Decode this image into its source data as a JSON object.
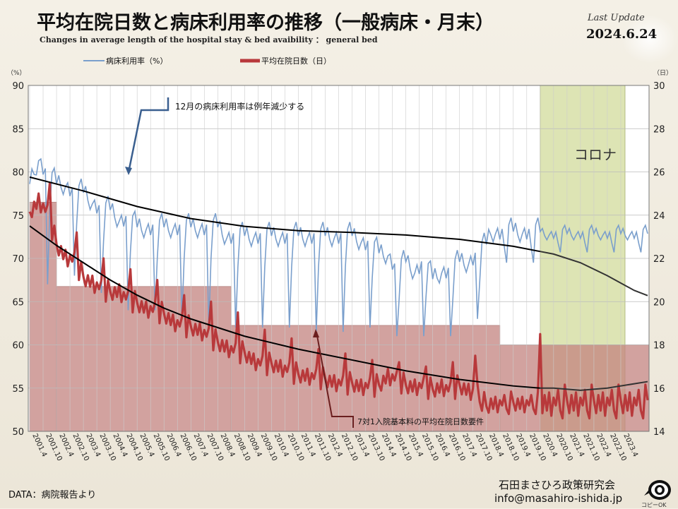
{
  "title": "平均在院日数と病床利用率の推移（一般病床・月末）",
  "subtitle": "Changes in average length of the hospital stay  & bed  avaibility  ： general bed",
  "last_update_label": "Last Update",
  "last_update_date": "2024.6.24",
  "source": "DATA：病院報告より",
  "organization": "石田まさひろ政策研究会",
  "email": "info@masahiro-ishida.jp",
  "logo_text": "コピーOK",
  "colors": {
    "occupancy": "#7a9fcc",
    "stay": "#b8393b",
    "trend": "#000000",
    "bars": "#c4837f",
    "covid": "#d8e0a8"
  },
  "chart_data": {
    "type": "line",
    "legend": [
      "病床利用率（%）",
      "平均在院日数（日）"
    ],
    "left_axis": {
      "unit": "（%）",
      "ylim": [
        50,
        90
      ],
      "ticks": [
        50,
        55,
        60,
        65,
        70,
        75,
        80,
        85,
        90
      ]
    },
    "right_axis": {
      "unit": "（日）",
      "ylim": [
        14,
        30
      ],
      "ticks": [
        14,
        16,
        18,
        20,
        22,
        24,
        26,
        28,
        30
      ]
    },
    "x_labels": [
      "2001.4",
      "2001.10",
      "2002.4",
      "2002.10",
      "2003.4",
      "2003.10",
      "2004.4",
      "2004.10",
      "2005.4",
      "2005.10",
      "2006.4",
      "2006.10",
      "2007.4",
      "2007.10",
      "2008.4",
      "2008.10",
      "2009.4",
      "2009.10",
      "2010.4",
      "2010.10",
      "2011.4",
      "2011.10",
      "2012.4",
      "2012.10",
      "2013.4",
      "2013.10",
      "2014.4",
      "2014.10",
      "2015.4",
      "2015.10",
      "2016.4",
      "2016.10",
      "2017.4",
      "2017.10",
      "2018.4",
      "2018.10",
      "2019.4",
      "2019.10",
      "2020.4",
      "2020.10",
      "2021.4",
      "2021.10",
      "2022.4",
      "2022.10",
      "2023.4"
    ],
    "annotations": {
      "december_note": "12月の病床利用率は例年減少する",
      "covid_label": "コロナ",
      "requirement_note": "7対1入院基本料の平均在院日数要件"
    },
    "requirement_steps": [
      {
        "from": "2001.4",
        "to": "2002.4",
        "days": 24.6
      },
      {
        "from": "2002.4",
        "to": "2008.10",
        "days": 20.7
      },
      {
        "from": "2008.10",
        "to": "2018.10",
        "days": 18.9
      },
      {
        "from": "2018.10",
        "to": "2023.10",
        "days": 18.0
      }
    ],
    "covid_period": {
      "from": "2020.4",
      "to": "2023.4"
    },
    "occupancy_anchor": [
      [
        0,
        78
      ],
      [
        4,
        81
      ],
      [
        8,
        79
      ],
      [
        12,
        78
      ],
      [
        16,
        78
      ],
      [
        20,
        77
      ],
      [
        24,
        77
      ],
      [
        28,
        76
      ],
      [
        32,
        75
      ],
      [
        36,
        75
      ],
      [
        40,
        74
      ],
      [
        44,
        74
      ],
      [
        48,
        73
      ],
      [
        52,
        73
      ],
      [
        56,
        73
      ],
      [
        60,
        73
      ],
      [
        64,
        73
      ],
      [
        68,
        73
      ],
      [
        72,
        73
      ],
      [
        76,
        73
      ],
      [
        80,
        73
      ],
      [
        84,
        73
      ],
      [
        88,
        72
      ],
      [
        92,
        72
      ],
      [
        96,
        72
      ],
      [
        100,
        72
      ],
      [
        104,
        72
      ],
      [
        108,
        72
      ],
      [
        112,
        72
      ],
      [
        116,
        72
      ],
      [
        120,
        72
      ],
      [
        124,
        72
      ],
      [
        128,
        72
      ],
      [
        132,
        72
      ],
      [
        136,
        72
      ],
      [
        140,
        72
      ],
      [
        144,
        72
      ],
      [
        148,
        71.5
      ],
      [
        152,
        71
      ],
      [
        156,
        70
      ],
      [
        160,
        70
      ],
      [
        164,
        68
      ],
      [
        168,
        69
      ],
      [
        172,
        68
      ],
      [
        176,
        69
      ],
      [
        180,
        67
      ],
      [
        184,
        68
      ],
      [
        188,
        68
      ],
      [
        192,
        69
      ],
      [
        196,
        69
      ],
      [
        200,
        70
      ],
      [
        204,
        71
      ],
      [
        206,
        72.5
      ]
    ],
    "occupancy_dec_dips": [
      [
        8,
        67
      ],
      [
        20,
        68
      ],
      [
        32,
        66
      ],
      [
        44,
        64
      ],
      [
        56,
        64
      ],
      [
        68,
        63
      ],
      [
        80,
        62
      ],
      [
        92,
        62
      ],
      [
        104,
        62
      ],
      [
        116,
        62
      ],
      [
        128,
        61.5
      ],
      [
        140,
        61.5
      ],
      [
        152,
        62
      ],
      [
        164,
        61
      ],
      [
        176,
        61
      ],
      [
        188,
        61
      ],
      [
        200,
        63
      ]
    ],
    "stay_anchor": [
      [
        0,
        24.0
      ],
      [
        4,
        24.6
      ],
      [
        8,
        24.0
      ],
      [
        12,
        22.5
      ],
      [
        16,
        22.0
      ],
      [
        20,
        21.8
      ],
      [
        24,
        21.0
      ],
      [
        28,
        20.8
      ],
      [
        32,
        20.5
      ],
      [
        36,
        20.3
      ],
      [
        40,
        20.4
      ],
      [
        44,
        20.0
      ],
      [
        48,
        19.8
      ],
      [
        52,
        19.6
      ],
      [
        56,
        19.5
      ],
      [
        60,
        19.3
      ],
      [
        64,
        19.0
      ],
      [
        68,
        18.8
      ],
      [
        72,
        18.7
      ],
      [
        76,
        18.6
      ],
      [
        80,
        18.3
      ],
      [
        84,
        18.0
      ],
      [
        88,
        17.8
      ],
      [
        92,
        17.6
      ],
      [
        96,
        17.5
      ],
      [
        100,
        17.2
      ],
      [
        104,
        17.0
      ],
      [
        108,
        17.0
      ],
      [
        112,
        16.9
      ],
      [
        116,
        16.7
      ],
      [
        120,
        16.5
      ],
      [
        124,
        16.5
      ],
      [
        128,
        16.4
      ],
      [
        132,
        16.3
      ],
      [
        136,
        16.2
      ],
      [
        140,
        16.1
      ],
      [
        144,
        16.1
      ],
      [
        148,
        16.0
      ],
      [
        152,
        16.0
      ],
      [
        156,
        16.0
      ],
      [
        160,
        16.5
      ],
      [
        164,
        16.3
      ],
      [
        168,
        16.0
      ],
      [
        172,
        16.0
      ],
      [
        176,
        16.0
      ],
      [
        180,
        15.8
      ],
      [
        184,
        16.0
      ],
      [
        188,
        15.8
      ],
      [
        192,
        16.0
      ],
      [
        196,
        15.8
      ],
      [
        200,
        15.7
      ],
      [
        204,
        15.0
      ],
      [
        206,
        15.2
      ]
    ],
    "stay_jan_spikes": [
      [
        9,
        25.5
      ],
      [
        21,
        23.2
      ],
      [
        33,
        22.0
      ],
      [
        45,
        21.5
      ],
      [
        57,
        21.0
      ],
      [
        69,
        20.3
      ],
      [
        81,
        20.0
      ],
      [
        93,
        19.5
      ],
      [
        105,
        18.7
      ],
      [
        117,
        18.3
      ],
      [
        129,
        17.8
      ],
      [
        141,
        17.6
      ],
      [
        153,
        17.3
      ],
      [
        165,
        17.2
      ],
      [
        177,
        17.0
      ],
      [
        189,
        17.2
      ],
      [
        199,
        17.5
      ],
      [
        228,
        18.5
      ]
    ],
    "occupancy_trend": [
      [
        0,
        79.4
      ],
      [
        24,
        77.8
      ],
      [
        48,
        76.0
      ],
      [
        72,
        74.6
      ],
      [
        96,
        73.7
      ],
      [
        120,
        73.2
      ],
      [
        144,
        73.0
      ],
      [
        168,
        72.7
      ],
      [
        192,
        72.2
      ],
      [
        216,
        71.4
      ],
      [
        228,
        70.8
      ],
      [
        234,
        70.5
      ],
      [
        246,
        69.5
      ],
      [
        258,
        68.0
      ],
      [
        270,
        66.3
      ],
      [
        276,
        65.7
      ]
    ],
    "stay_trend": [
      [
        0,
        23.5
      ],
      [
        12,
        22.6
      ],
      [
        24,
        21.8
      ],
      [
        36,
        21.0
      ],
      [
        48,
        20.3
      ],
      [
        60,
        19.7
      ],
      [
        72,
        19.2
      ],
      [
        96,
        18.4
      ],
      [
        120,
        17.8
      ],
      [
        144,
        17.3
      ],
      [
        168,
        16.8
      ],
      [
        192,
        16.4
      ],
      [
        216,
        16.1
      ],
      [
        228,
        16.0
      ],
      [
        234,
        16.0
      ],
      [
        246,
        15.9
      ],
      [
        258,
        16.0
      ],
      [
        270,
        16.2
      ],
      [
        276,
        16.3
      ]
    ],
    "months_total": 277
  }
}
